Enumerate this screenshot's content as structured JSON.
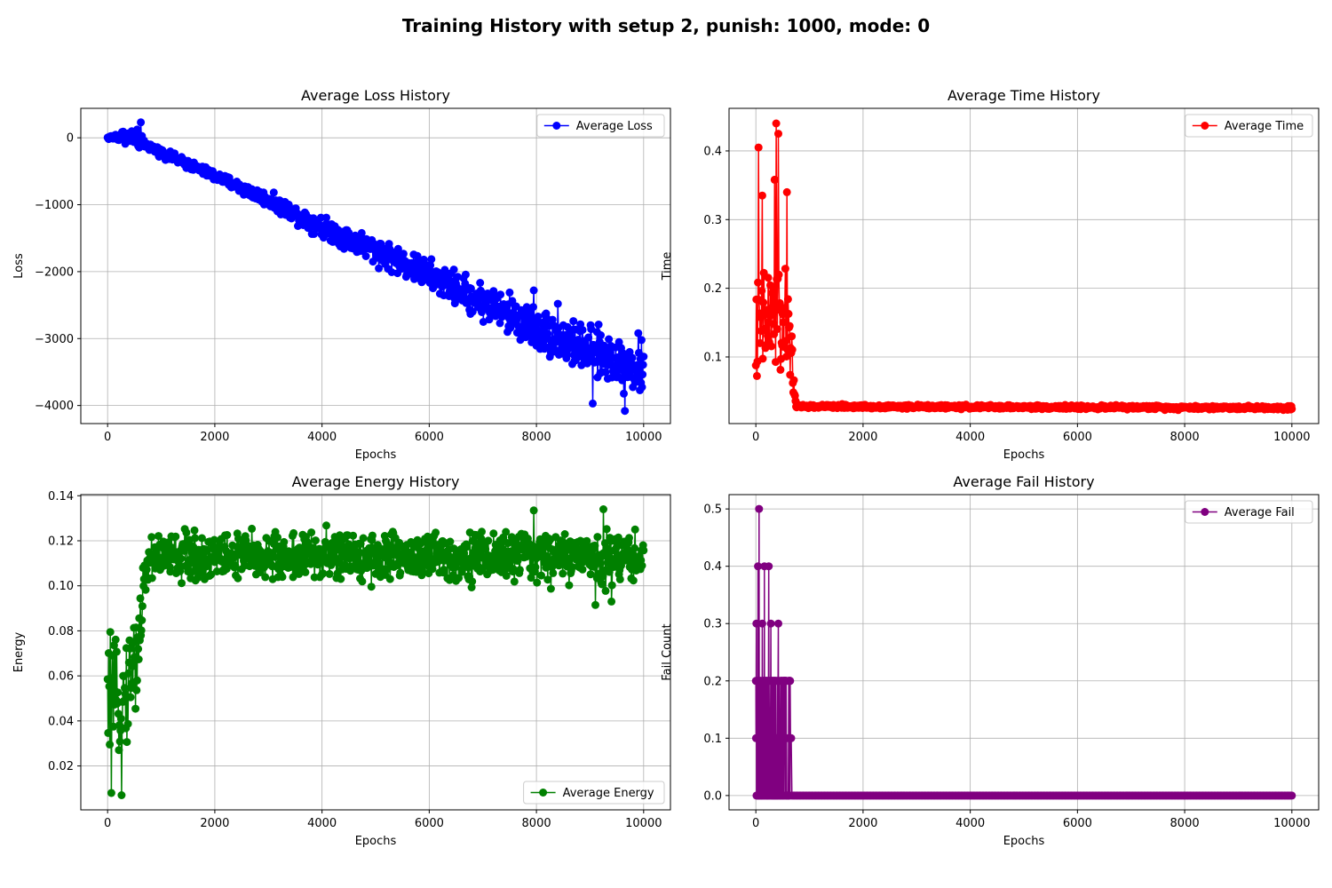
{
  "figure": {
    "suptitle": "Training History with setup 2, punish: 1000, mode: 0"
  },
  "chart_data": [
    {
      "type": "line",
      "title": "Average Loss History",
      "xlabel": "Epochs",
      "ylabel": "Loss",
      "legend": "Average Loss",
      "legend_loc": "upper-right",
      "color": "#0000ff",
      "grid": true,
      "xlim": [
        -500,
        10500
      ],
      "ylim": [
        -4270,
        440
      ],
      "xticks": [
        0,
        2000,
        4000,
        6000,
        8000,
        10000
      ],
      "xticklabels": [
        "0",
        "2000",
        "4000",
        "6000",
        "8000",
        "10000"
      ],
      "yticks": [
        0,
        -1000,
        -2000,
        -3000,
        -4000
      ],
      "yticklabels": [
        "0",
        "−1000",
        "−2000",
        "−3000",
        "−4000"
      ],
      "series": [
        {
          "x_range": [
            0,
            10000
          ],
          "stats": [
            {
              "x": 0,
              "mean": 0,
              "spread": 30
            },
            {
              "x": 300,
              "mean": 30,
              "spread": 140
            },
            {
              "x": 600,
              "mean": -30,
              "spread": 200
            },
            {
              "x": 700,
              "mean": -100,
              "spread": 80
            },
            {
              "x": 1000,
              "mean": -220,
              "spread": 90
            },
            {
              "x": 2000,
              "mean": -570,
              "spread": 110
            },
            {
              "x": 3000,
              "mean": -930,
              "spread": 150
            },
            {
              "x": 4000,
              "mean": -1330,
              "spread": 220
            },
            {
              "x": 5000,
              "mean": -1680,
              "spread": 280
            },
            {
              "x": 6000,
              "mean": -2050,
              "spread": 320
            },
            {
              "x": 7000,
              "mean": -2450,
              "spread": 400
            },
            {
              "x": 8000,
              "mean": -2850,
              "spread": 460
            },
            {
              "x": 9000,
              "mean": -3200,
              "spread": 520
            },
            {
              "x": 10000,
              "mean": -3480,
              "spread": 560
            }
          ],
          "outliers": [
            {
              "x": 620,
              "y": 230
            },
            {
              "x": 9050,
              "y": -3970
            },
            {
              "x": 9650,
              "y": -4080
            },
            {
              "x": 9900,
              "y": -2920
            },
            {
              "x": 8400,
              "y": -2480
            },
            {
              "x": 7950,
              "y": -2280
            }
          ]
        }
      ]
    },
    {
      "type": "line",
      "title": "Average Time History",
      "xlabel": "Epochs",
      "ylabel": "Time",
      "legend": "Average Time",
      "legend_loc": "upper-right",
      "color": "#ff0000",
      "grid": true,
      "xlim": [
        -500,
        10500
      ],
      "ylim": [
        0.003,
        0.462
      ],
      "xticks": [
        0,
        2000,
        4000,
        6000,
        8000,
        10000
      ],
      "xticklabels": [
        "0",
        "2000",
        "4000",
        "6000",
        "8000",
        "10000"
      ],
      "yticks": [
        0.1,
        0.2,
        0.3,
        0.4
      ],
      "yticklabels": [
        "0.1",
        "0.2",
        "0.3",
        "0.4"
      ],
      "series": [
        {
          "x_range": [
            0,
            10000
          ],
          "stats": [
            {
              "x": 0,
              "mean": 0.13,
              "spread": 0.11
            },
            {
              "x": 200,
              "mean": 0.15,
              "spread": 0.13
            },
            {
              "x": 400,
              "mean": 0.16,
              "spread": 0.14
            },
            {
              "x": 650,
              "mean": 0.12,
              "spread": 0.09
            },
            {
              "x": 750,
              "mean": 0.028,
              "spread": 0.004
            },
            {
              "x": 10000,
              "mean": 0.026,
              "spread": 0.004
            }
          ],
          "outliers": [
            {
              "x": 380,
              "y": 0.44
            },
            {
              "x": 420,
              "y": 0.425
            },
            {
              "x": 50,
              "y": 0.405
            },
            {
              "x": 350,
              "y": 0.358
            },
            {
              "x": 120,
              "y": 0.335
            },
            {
              "x": 580,
              "y": 0.34
            }
          ]
        }
      ]
    },
    {
      "type": "line",
      "title": "Average Energy History",
      "xlabel": "Epochs",
      "ylabel": "Energy",
      "legend": "Average Energy",
      "legend_loc": "lower-right",
      "color": "#008000",
      "grid": true,
      "xlim": [
        -500,
        10500
      ],
      "ylim": [
        0.0005,
        0.1405
      ],
      "xticks": [
        0,
        2000,
        4000,
        6000,
        8000,
        10000
      ],
      "xticklabels": [
        "0",
        "2000",
        "4000",
        "6000",
        "8000",
        "10000"
      ],
      "yticks": [
        0.02,
        0.04,
        0.06,
        0.08,
        0.1,
        0.12,
        0.14
      ],
      "yticklabels": [
        "0.02",
        "0.04",
        "0.06",
        "0.08",
        "0.10",
        "0.12",
        "0.14"
      ],
      "series": [
        {
          "x_range": [
            0,
            10000
          ],
          "stats": [
            {
              "x": 0,
              "mean": 0.045,
              "spread": 0.03
            },
            {
              "x": 300,
              "mean": 0.05,
              "spread": 0.035
            },
            {
              "x": 550,
              "mean": 0.07,
              "spread": 0.03
            },
            {
              "x": 700,
              "mean": 0.105,
              "spread": 0.02
            },
            {
              "x": 800,
              "mean": 0.113,
              "spread": 0.016
            },
            {
              "x": 10000,
              "mean": 0.113,
              "spread": 0.016
            }
          ],
          "outliers": [
            {
              "x": 50,
              "y": 0.0795
            },
            {
              "x": 260,
              "y": 0.007
            },
            {
              "x": 70,
              "y": 0.008
            },
            {
              "x": 9250,
              "y": 0.134
            },
            {
              "x": 7950,
              "y": 0.1335
            },
            {
              "x": 9100,
              "y": 0.0915
            },
            {
              "x": 9400,
              "y": 0.093
            }
          ]
        }
      ]
    },
    {
      "type": "line",
      "title": "Average Fail History",
      "xlabel": "Epochs",
      "ylabel": "Fail Count",
      "legend": "Average Fail",
      "legend_loc": "upper-right",
      "color": "#800080",
      "grid": true,
      "xlim": [
        -500,
        10500
      ],
      "ylim": [
        -0.025,
        0.525
      ],
      "xticks": [
        0,
        2000,
        4000,
        6000,
        8000,
        10000
      ],
      "xticklabels": [
        "0",
        "2000",
        "4000",
        "6000",
        "8000",
        "10000"
      ],
      "yticks": [
        0.0,
        0.1,
        0.2,
        0.3,
        0.4,
        0.5
      ],
      "yticklabels": [
        "0.0",
        "0.1",
        "0.2",
        "0.3",
        "0.4",
        "0.5"
      ],
      "series": [
        {
          "x_range": [
            0,
            10000
          ],
          "discrete_levels": [
            0.0,
            0.1,
            0.2,
            0.3,
            0.4,
            0.5
          ],
          "active_until": 650,
          "peaks": [
            {
              "x": 60,
              "y": 0.5
            },
            {
              "x": 40,
              "y": 0.4
            },
            {
              "x": 160,
              "y": 0.4
            },
            {
              "x": 240,
              "y": 0.4
            },
            {
              "x": 10,
              "y": 0.3
            },
            {
              "x": 120,
              "y": 0.3
            },
            {
              "x": 280,
              "y": 0.3
            },
            {
              "x": 420,
              "y": 0.3
            },
            {
              "x": 300,
              "y": 0.2
            },
            {
              "x": 500,
              "y": 0.2
            },
            {
              "x": 640,
              "y": 0.2
            },
            {
              "x": 660,
              "y": 0.1
            }
          ],
          "after": 0.0
        }
      ]
    }
  ]
}
